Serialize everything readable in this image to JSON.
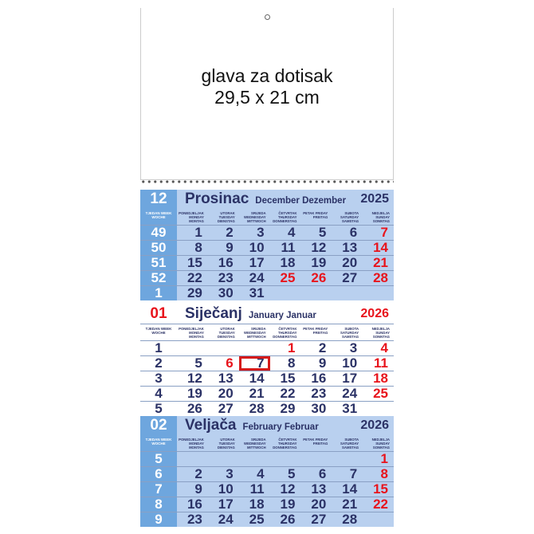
{
  "header": {
    "line1": "glava za dotisak",
    "line2": "29,5 x 21 cm"
  },
  "week_label": "TJEDAN WEEK WOCHE",
  "weekdays": [
    "PONEDJELJAK MONDAY MONTAG",
    "UTORAK TUESDAY DIENSTAG",
    "SRIJEDA WEDNESDAY MITTWOCH",
    "ČETVRTAK THURSDAY DONNERSTAG",
    "PETAK FRIDAY FREITAG",
    "SUBOTA SATURDAY SAMSTAG",
    "NEDJELJA SUNDAY SONNTAG"
  ],
  "colors": {
    "navy": "#2b3266",
    "red": "#e8141c",
    "light_blue": "#b9d0ef",
    "week_blue": "#6ea6de"
  },
  "selected_date": "2026-01-07",
  "months": [
    {
      "num": "12",
      "name": "Prosinac",
      "en_de": "December  Dezember",
      "year": "2025",
      "style": "blue",
      "rows": [
        {
          "week": "49",
          "days": [
            "1",
            "2",
            "3",
            "4",
            "5",
            "6",
            "7"
          ],
          "red": [
            6
          ]
        },
        {
          "week": "50",
          "days": [
            "8",
            "9",
            "10",
            "11",
            "12",
            "13",
            "14"
          ],
          "red": [
            6
          ]
        },
        {
          "week": "51",
          "days": [
            "15",
            "16",
            "17",
            "18",
            "19",
            "20",
            "21"
          ],
          "red": [
            6
          ]
        },
        {
          "week": "52",
          "days": [
            "22",
            "23",
            "24",
            "25",
            "26",
            "27",
            "28"
          ],
          "red": [
            3,
            4,
            6
          ]
        },
        {
          "week": "1",
          "days": [
            "29",
            "30",
            "31",
            "",
            "",
            "",
            ""
          ],
          "red": []
        }
      ]
    },
    {
      "num": "01",
      "name": "Siječanj",
      "en_de": "January  Januar",
      "year": "2026",
      "style": "white",
      "rows": [
        {
          "week": "1",
          "days": [
            "",
            "",
            "",
            "1",
            "2",
            "3",
            "4"
          ],
          "red": [
            3,
            6
          ]
        },
        {
          "week": "2",
          "days": [
            "5",
            "6",
            "7",
            "8",
            "9",
            "10",
            "11"
          ],
          "red": [
            1,
            6
          ],
          "selected": 2
        },
        {
          "week": "3",
          "days": [
            "12",
            "13",
            "14",
            "15",
            "16",
            "17",
            "18"
          ],
          "red": [
            6
          ]
        },
        {
          "week": "4",
          "days": [
            "19",
            "20",
            "21",
            "22",
            "23",
            "24",
            "25"
          ],
          "red": [
            6
          ]
        },
        {
          "week": "5",
          "days": [
            "26",
            "27",
            "28",
            "29",
            "30",
            "31",
            ""
          ],
          "red": []
        }
      ]
    },
    {
      "num": "02",
      "name": "Veljača",
      "en_de": "February  Februar",
      "year": "2026",
      "style": "blue",
      "rows": [
        {
          "week": "5",
          "days": [
            "",
            "",
            "",
            "",
            "",
            "",
            "1"
          ],
          "red": [
            6
          ]
        },
        {
          "week": "6",
          "days": [
            "2",
            "3",
            "4",
            "5",
            "6",
            "7",
            "8"
          ],
          "red": [
            6
          ]
        },
        {
          "week": "7",
          "days": [
            "9",
            "10",
            "11",
            "12",
            "13",
            "14",
            "15"
          ],
          "red": [
            6
          ]
        },
        {
          "week": "8",
          "days": [
            "16",
            "17",
            "18",
            "19",
            "20",
            "21",
            "22"
          ],
          "red": [
            6
          ]
        },
        {
          "week": "9",
          "days": [
            "23",
            "24",
            "25",
            "26",
            "27",
            "28",
            ""
          ],
          "red": []
        }
      ]
    }
  ]
}
